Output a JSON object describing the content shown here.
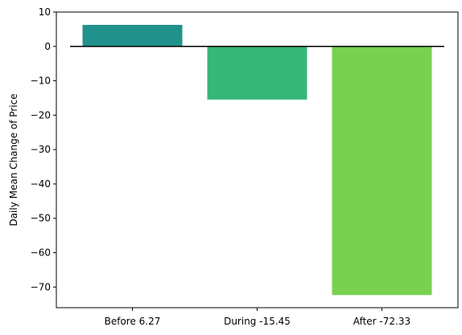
{
  "chart_data": {
    "type": "bar",
    "categories": [
      "Before 6.27",
      "During -15.45",
      "After -72.33"
    ],
    "values": [
      6.27,
      -15.45,
      -72.33
    ],
    "colors": [
      "#21918c",
      "#35b779",
      "#7ad151"
    ],
    "title": "",
    "xlabel": "",
    "ylabel": "Daily Mean Change of Price",
    "ylim": [
      -76,
      10
    ],
    "yticks": [
      10,
      0,
      -10,
      -20,
      -30,
      -40,
      -50,
      -60,
      -70
    ],
    "ytick_labels": [
      "10",
      "0",
      "−10",
      "−20",
      "−30",
      "−40",
      "−50",
      "−60",
      "−70"
    ],
    "reference_line": {
      "y": 0,
      "color": "#000000"
    },
    "grid": false,
    "legend": "none"
  }
}
